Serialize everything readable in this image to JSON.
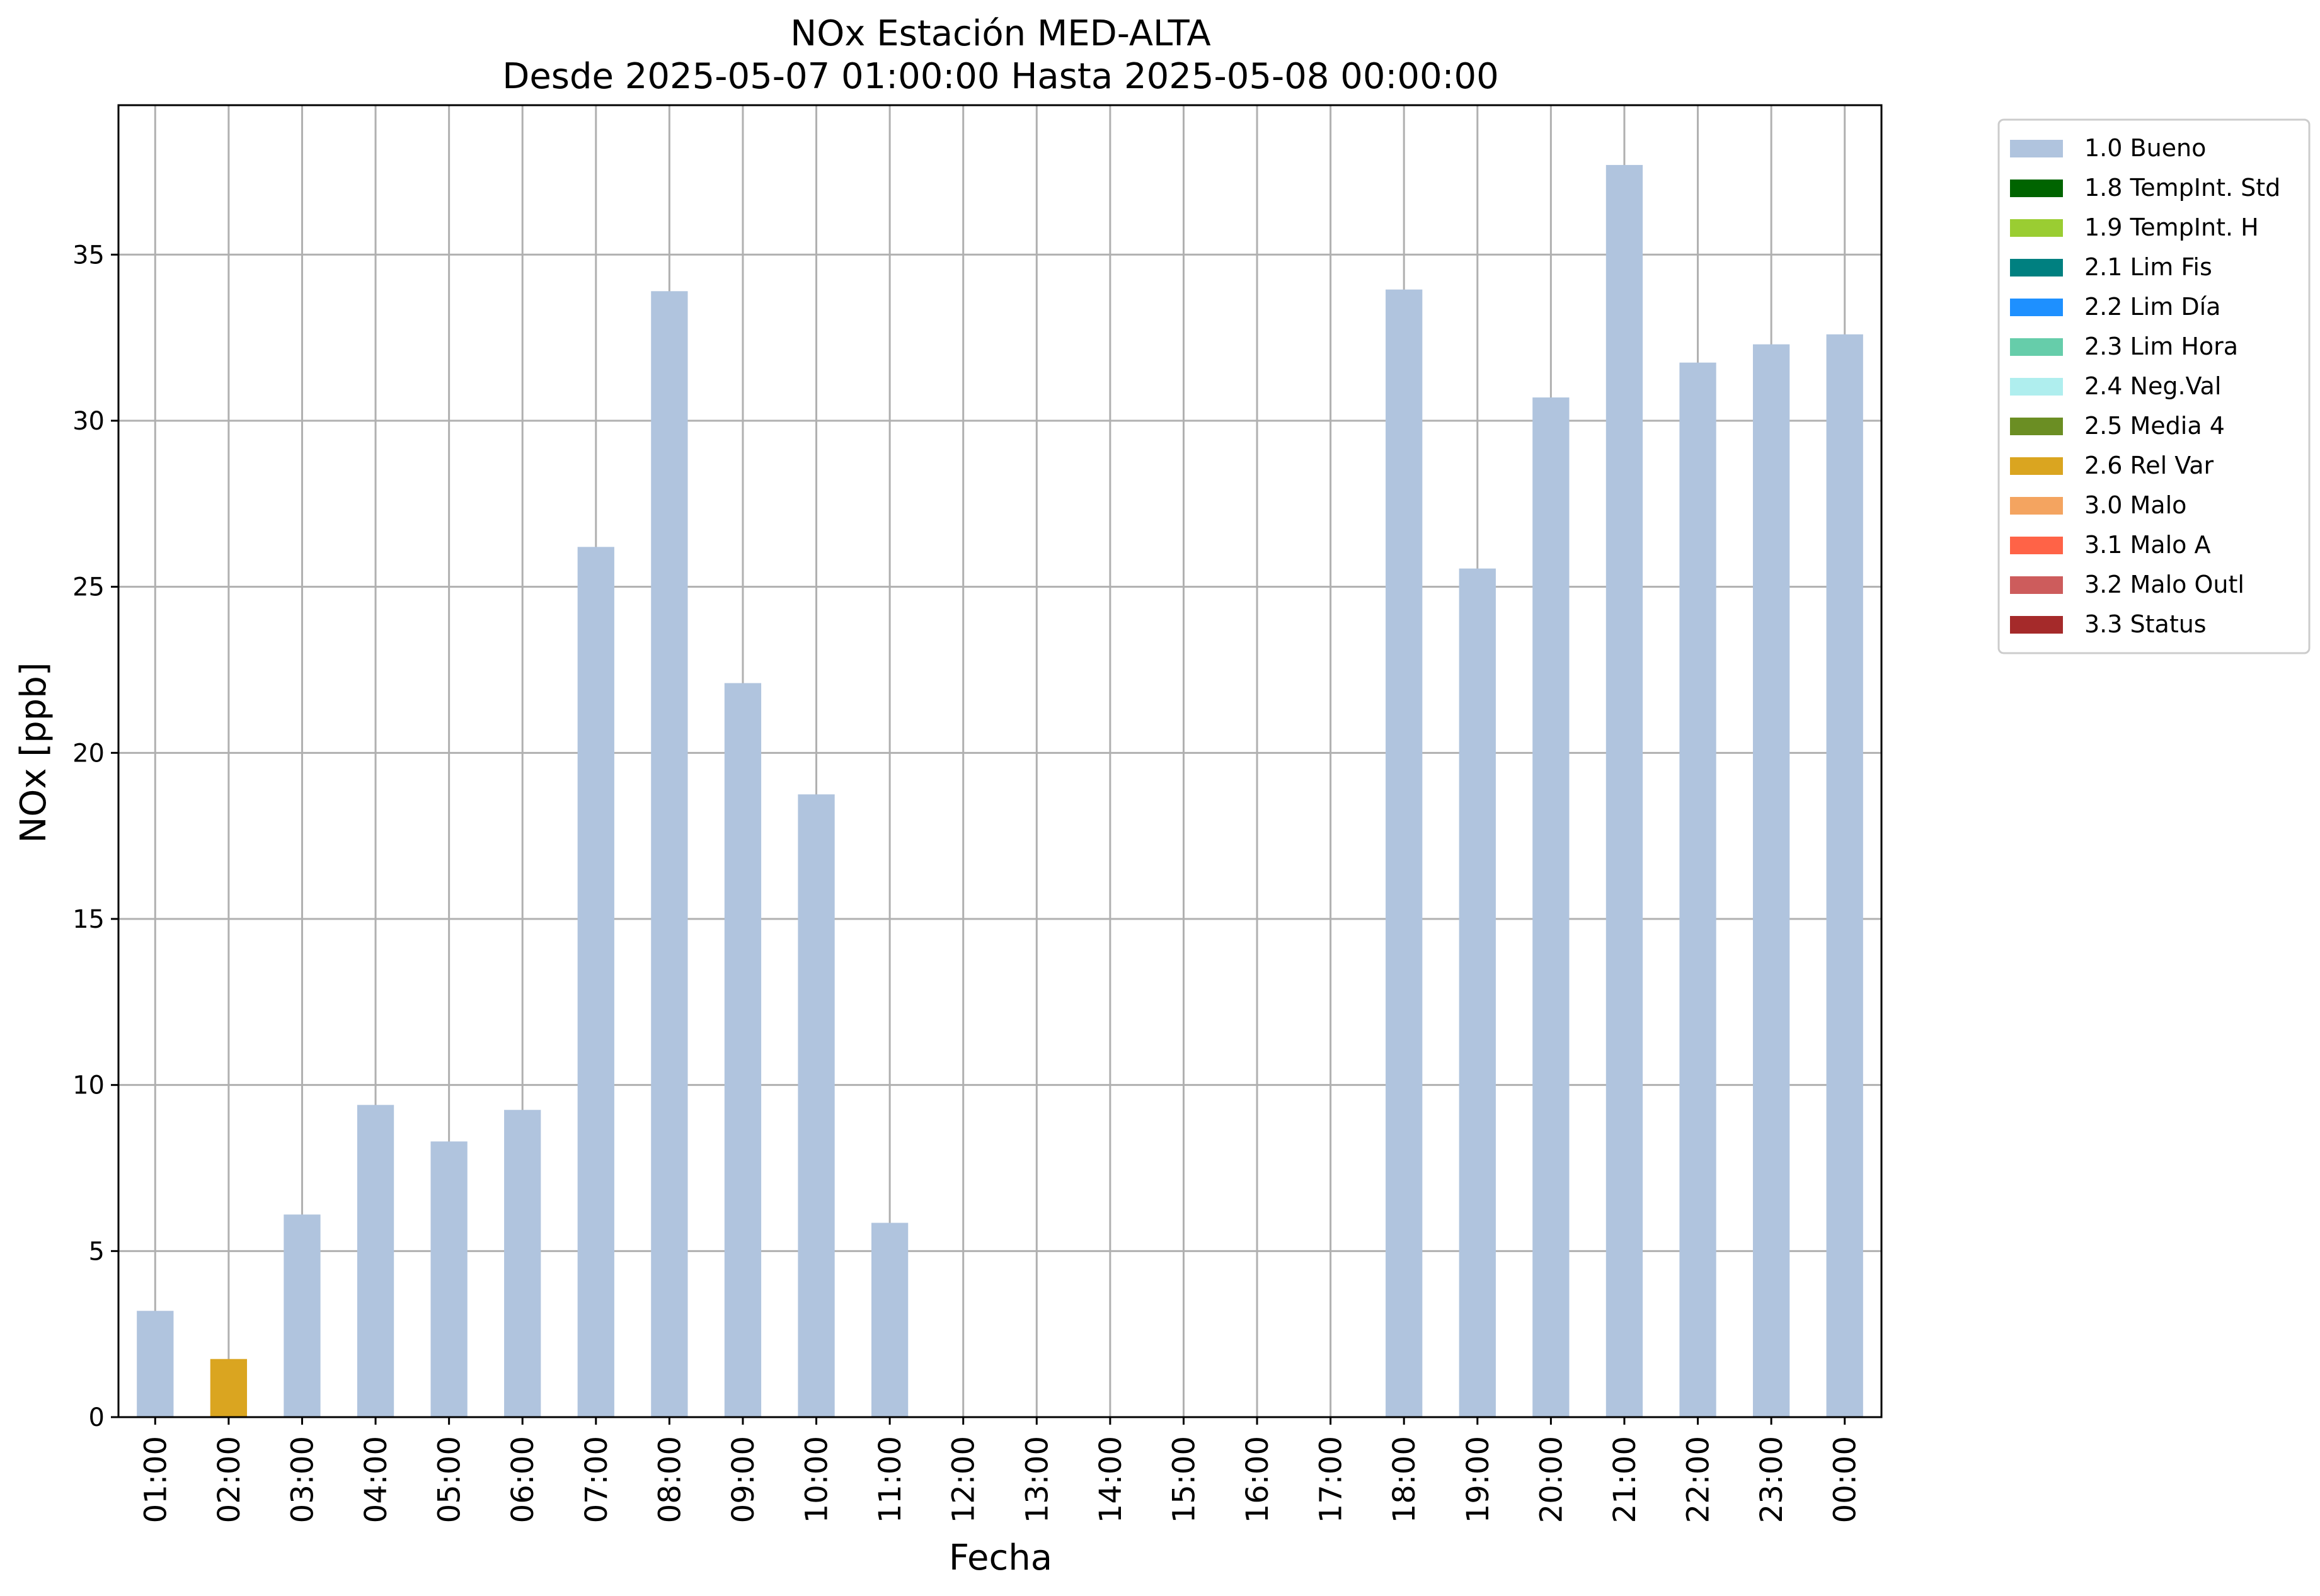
{
  "chart_data": {
    "type": "bar",
    "title": "NOx Estación MED-ALTA",
    "subtitle": "Desde 2025-05-07 01:00:00 Hasta 2025-05-08 00:00:00",
    "xlabel": "Fecha",
    "ylabel": "NOx [ppb]",
    "ylim": [
      0,
      39.5
    ],
    "yticks": [
      0,
      5,
      10,
      15,
      20,
      25,
      30,
      35
    ],
    "grid": true,
    "legend_position": "outside top-right",
    "categories": [
      "01:00",
      "02:00",
      "03:00",
      "04:00",
      "05:00",
      "06:00",
      "07:00",
      "08:00",
      "09:00",
      "10:00",
      "11:00",
      "12:00",
      "13:00",
      "14:00",
      "15:00",
      "16:00",
      "17:00",
      "18:00",
      "19:00",
      "20:00",
      "21:00",
      "22:00",
      "23:00",
      "00:00"
    ],
    "values": [
      3.2,
      1.75,
      6.1,
      9.4,
      8.3,
      9.25,
      26.2,
      33.9,
      22.1,
      18.75,
      5.85,
      null,
      null,
      null,
      null,
      null,
      null,
      33.95,
      25.55,
      30.7,
      37.7,
      31.75,
      32.3,
      32.6
    ],
    "flags": [
      "1.0 Bueno",
      "2.6 Rel Var",
      "1.0 Bueno",
      "1.0 Bueno",
      "1.0 Bueno",
      "1.0 Bueno",
      "1.0 Bueno",
      "1.0 Bueno",
      "1.0 Bueno",
      "1.0 Bueno",
      "1.0 Bueno",
      null,
      null,
      null,
      null,
      null,
      null,
      "1.0 Bueno",
      "1.0 Bueno",
      "1.0 Bueno",
      "1.0 Bueno",
      "1.0 Bueno",
      "1.0 Bueno",
      "1.0 Bueno"
    ],
    "legend": [
      {
        "label": "1.0 Bueno",
        "color": "#b0c4de"
      },
      {
        "label": "1.8 TempInt. Std",
        "color": "#006400"
      },
      {
        "label": "1.9 TempInt. H",
        "color": "#9acd32"
      },
      {
        "label": "2.1 Lim Fis",
        "color": "#008080"
      },
      {
        "label": "2.2 Lim Día",
        "color": "#1e90ff"
      },
      {
        "label": "2.3 Lim Hora",
        "color": "#66cdaa"
      },
      {
        "label": "2.4 Neg.Val",
        "color": "#afeeee"
      },
      {
        "label": "2.5 Media 4",
        "color": "#6b8e23"
      },
      {
        "label": "2.6 Rel Var",
        "color": "#daa520"
      },
      {
        "label": "3.0 Malo",
        "color": "#f4a460"
      },
      {
        "label": "3.1 Malo A",
        "color": "#ff6347"
      },
      {
        "label": "3.2 Malo Outl",
        "color": "#cd5c5c"
      },
      {
        "label": "3.3 Status",
        "color": "#a52a2a"
      }
    ]
  }
}
